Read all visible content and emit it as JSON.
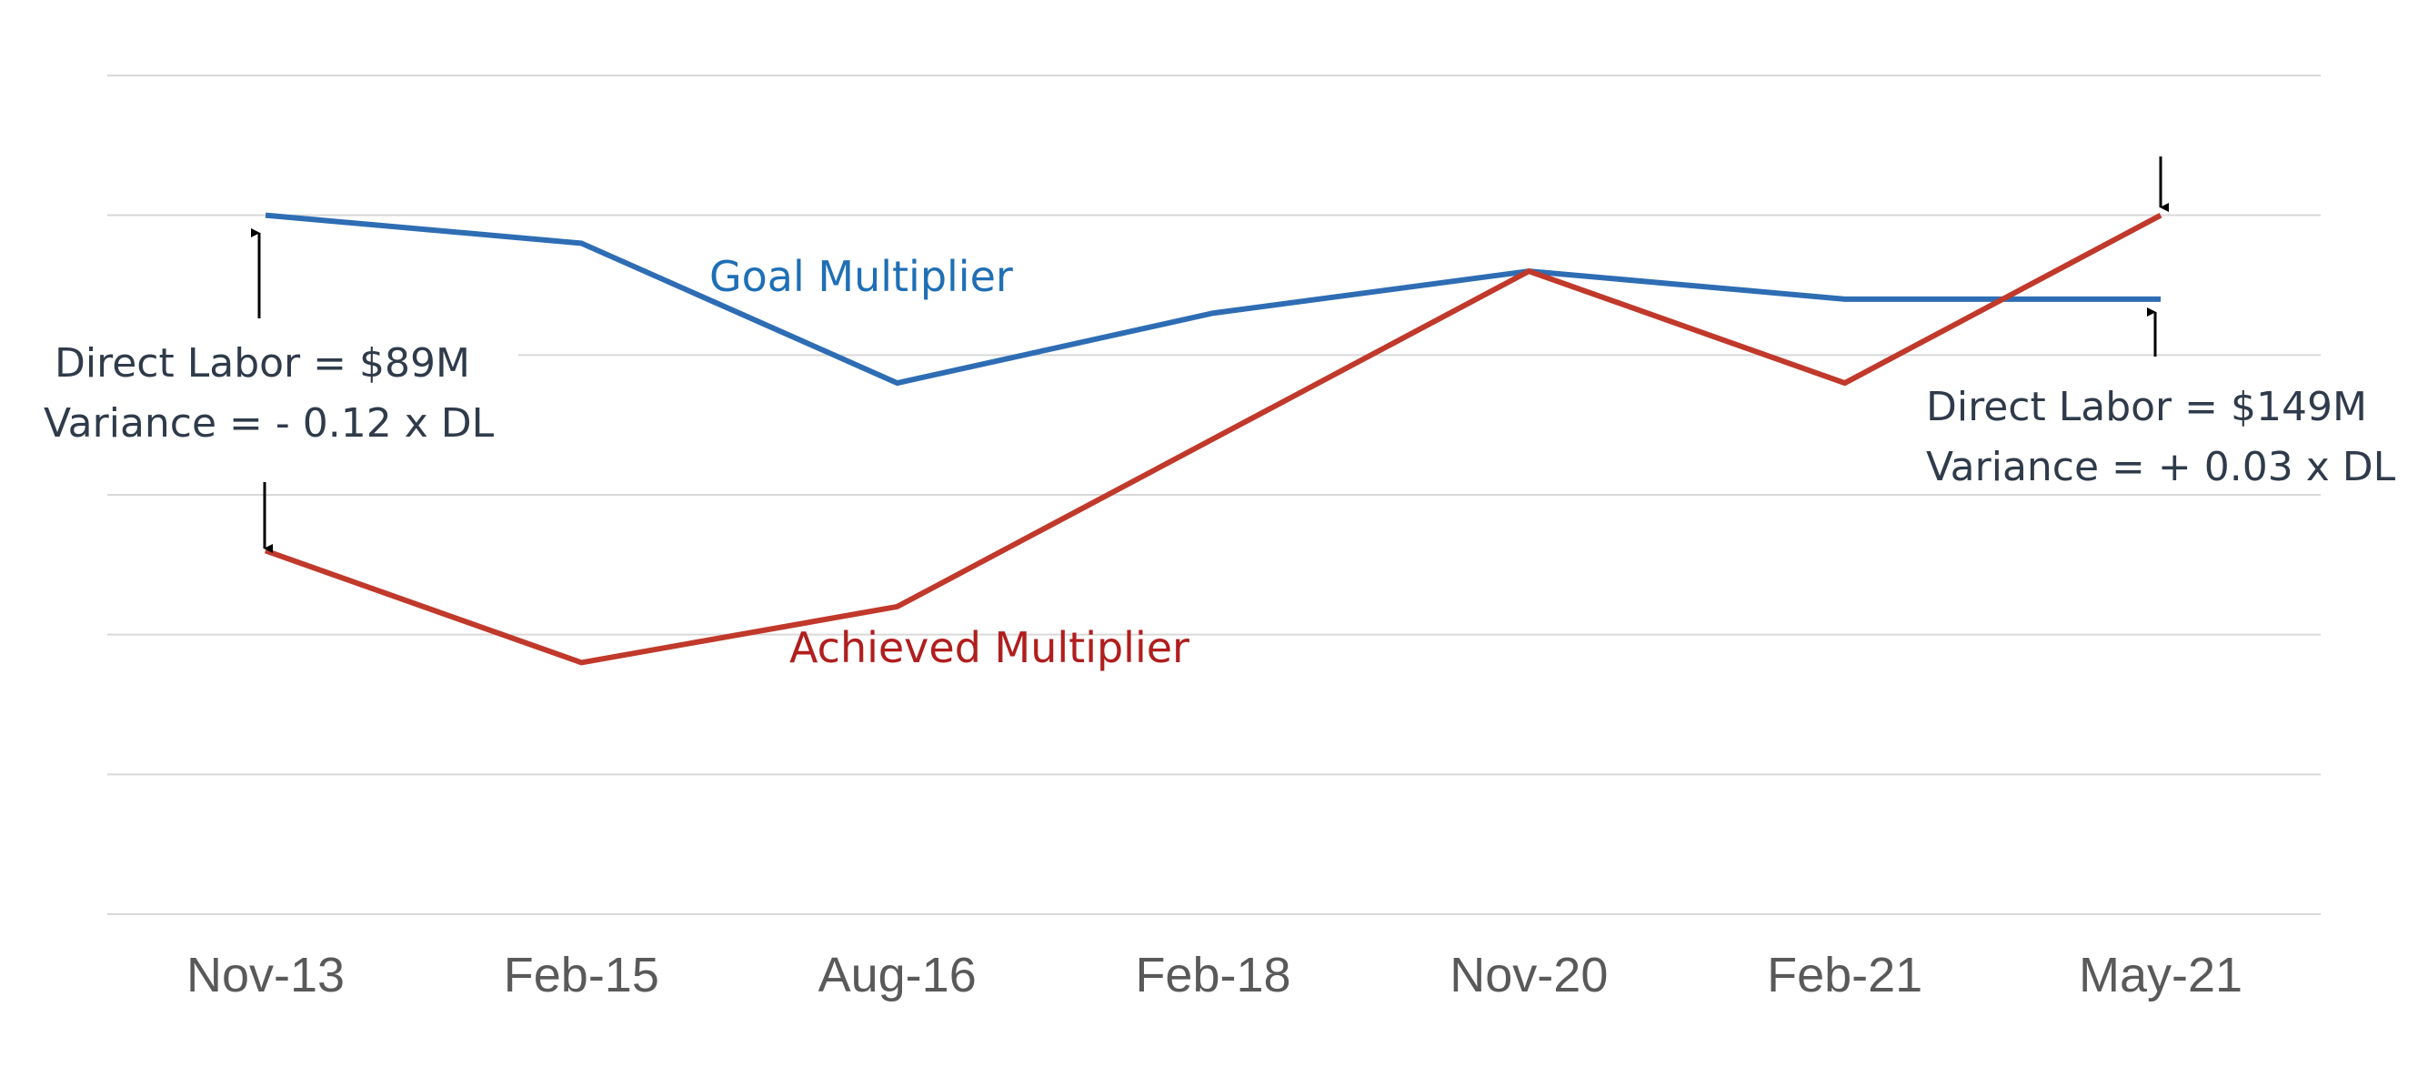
{
  "chart_data": {
    "type": "line",
    "categories": [
      "Nov-13",
      "Feb-15",
      "Aug-16",
      "Feb-18",
      "Nov-20",
      "Feb-21",
      "May-21"
    ],
    "ylim": [
      0,
      6
    ],
    "grid": true,
    "legend": "none",
    "series": [
      {
        "name": "Goal Multiplier",
        "color": "#2e6db4",
        "label_color": "#1f6fb5",
        "values": [
          5.0,
          4.8,
          3.8,
          4.3,
          4.6,
          4.4,
          4.4
        ]
      },
      {
        "name": "Achieved Multiplier",
        "color": "#c0392b",
        "label_color": "#b01e1e",
        "values": [
          2.6,
          1.8,
          2.2,
          3.4,
          4.6,
          3.8,
          5.0
        ]
      }
    ],
    "annotations": [
      {
        "name": "left",
        "line1": "Direct Labor = $89M",
        "line2": "Variance = - 0.12 x DL",
        "category": "Nov-13"
      },
      {
        "name": "right",
        "line1": "Direct Labor = $149M",
        "line2": "Variance = + 0.03 x DL",
        "category": "May-21"
      }
    ]
  }
}
